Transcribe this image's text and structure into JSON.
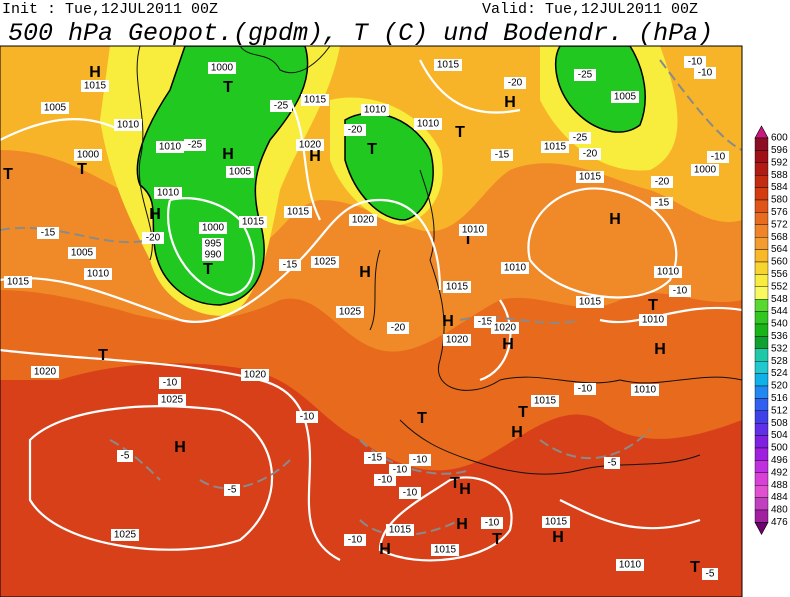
{
  "header": {
    "init": "Init : Tue,12JUL2011 00Z",
    "valid": "Valid: Tue,12JUL2011 00Z",
    "title": "500 hPa Geopot.(gpdm), T (C) und Bodendr. (hPa)"
  },
  "colorbar": {
    "labels": [
      600,
      596,
      592,
      588,
      584,
      580,
      576,
      572,
      568,
      564,
      560,
      556,
      552,
      548,
      544,
      540,
      536,
      532,
      528,
      524,
      520,
      516,
      512,
      508,
      504,
      500,
      496,
      492,
      488,
      484,
      480,
      476
    ],
    "colors": [
      "#c8187c",
      "#8c0c24",
      "#a01018",
      "#b01c14",
      "#c42c10",
      "#d43c10",
      "#e05418",
      "#e86c20",
      "#f08428",
      "#f49c30",
      "#f8b828",
      "#f8d430",
      "#f8ec40",
      "#f8f860",
      "#58d830",
      "#30c820",
      "#18b418",
      "#10a030",
      "#20c8a8",
      "#20c8d0",
      "#10b0e8",
      "#2088f0",
      "#3060f0",
      "#4040e8",
      "#6030e8",
      "#8020e0",
      "#a020e0",
      "#c030e0",
      "#d840d8",
      "#e050d0",
      "#c040c0",
      "#a020a0",
      "#700070"
    ]
  },
  "map_labels": [
    "H",
    "1015",
    "1005",
    "1010",
    "1000",
    "T",
    "T",
    "H",
    "1010",
    "-20",
    "-15",
    "1005",
    "1010",
    "1015",
    "1000",
    "T",
    "-25",
    "1015",
    "1010",
    "-25",
    "H",
    "1005",
    "1020",
    "H",
    "1000",
    "995",
    "990",
    "T",
    "-15",
    "1015",
    "1015",
    "1025",
    "H",
    "1025",
    "-20",
    "1020",
    "T",
    "-20",
    "1010",
    "1010",
    "T",
    "1015",
    "-15",
    "1015",
    "H",
    "-20",
    "-25",
    "1005",
    "-25",
    "-20",
    "1015",
    "1000",
    "-20",
    "-15",
    "-10",
    "-10",
    "-10",
    "H",
    "T",
    "1010",
    "1010",
    "1010",
    "-10",
    "1015",
    "T",
    "1010",
    "H",
    "1015",
    "H",
    "-15",
    "1020",
    "1020",
    "H",
    "-10",
    "1010",
    "1015",
    "T",
    "T",
    "H",
    "T",
    "1020",
    "1020",
    "-10",
    "1025",
    "-10",
    "H",
    "-5",
    "-5",
    "-15",
    "-10",
    "-10",
    "-10",
    "T",
    "H",
    "-10",
    "-10",
    "1015",
    "H",
    "T",
    "1015",
    "H",
    "-5",
    "-10",
    "H",
    "1015",
    "1025",
    "1010",
    "T",
    "-5"
  ]
}
